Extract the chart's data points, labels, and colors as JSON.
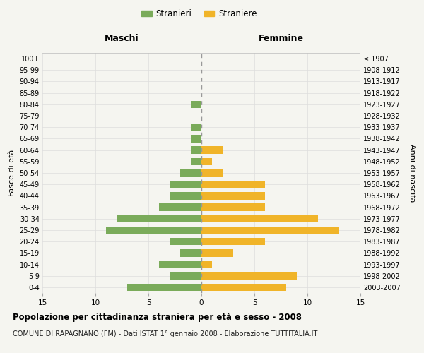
{
  "age_groups": [
    "0-4",
    "5-9",
    "10-14",
    "15-19",
    "20-24",
    "25-29",
    "30-34",
    "35-39",
    "40-44",
    "45-49",
    "50-54",
    "55-59",
    "60-64",
    "65-69",
    "70-74",
    "75-79",
    "80-84",
    "85-89",
    "90-94",
    "95-99",
    "100+"
  ],
  "birth_years": [
    "2003-2007",
    "1998-2002",
    "1993-1997",
    "1988-1992",
    "1983-1987",
    "1978-1982",
    "1973-1977",
    "1968-1972",
    "1963-1967",
    "1958-1962",
    "1953-1957",
    "1948-1952",
    "1943-1947",
    "1938-1942",
    "1933-1937",
    "1928-1932",
    "1923-1927",
    "1918-1922",
    "1913-1917",
    "1908-1912",
    "≤ 1907"
  ],
  "maschi": [
    7,
    3,
    4,
    2,
    3,
    9,
    8,
    4,
    3,
    3,
    2,
    1,
    1,
    1,
    1,
    0,
    1,
    0,
    0,
    0,
    0
  ],
  "femmine": [
    8,
    9,
    1,
    3,
    6,
    13,
    11,
    6,
    6,
    6,
    2,
    1,
    2,
    0,
    0,
    0,
    0,
    0,
    0,
    0,
    0
  ],
  "color_maschi": "#7aab5a",
  "color_femmine": "#f0b429",
  "bg_color": "#f5f5f0",
  "grid_color": "#ffffff",
  "center_line_color": "#999999",
  "title": "Popolazione per cittadinanza straniera per età e sesso - 2008",
  "subtitle": "COMUNE DI RAPAGNANO (FM) - Dati ISTAT 1° gennaio 2008 - Elaborazione TUTTITALIA.IT",
  "header_left": "Maschi",
  "header_right": "Femmine",
  "ylabel_left": "Fasce di età",
  "ylabel_right": "Anni di nascita",
  "legend_maschi": "Stranieri",
  "legend_femmine": "Straniere",
  "xlim": 15,
  "xticks": [
    -15,
    -10,
    -5,
    0,
    5,
    10,
    15
  ],
  "xtick_labels": [
    "15",
    "10",
    "5",
    "0",
    "5",
    "10",
    "15"
  ]
}
